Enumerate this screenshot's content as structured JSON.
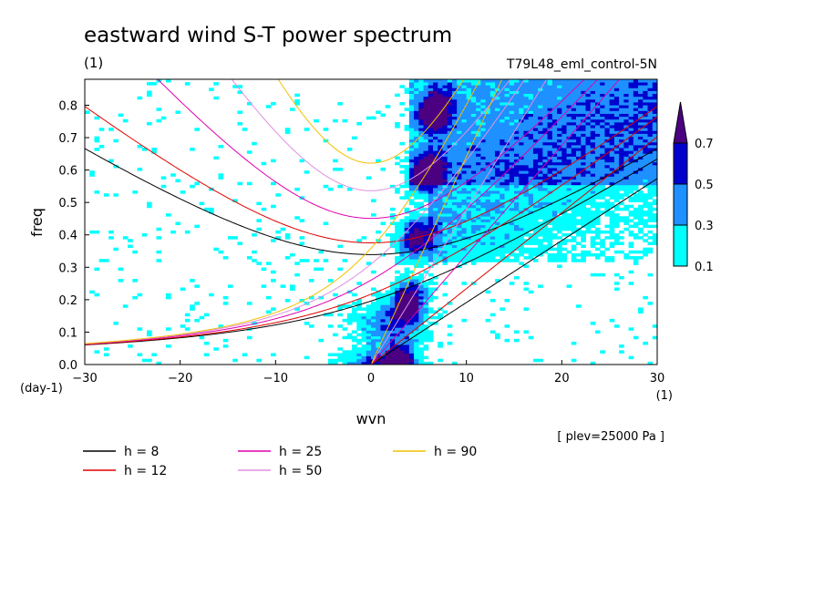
{
  "chart_data": {
    "type": "contour",
    "title": "eastward wind S-T power spectrum",
    "subtitle_left": "(1)",
    "subtitle_right": "T79L48_eml_control-5N",
    "xlabel": "wvn",
    "ylabel": "freq",
    "x_unit": "(1)",
    "y_unit": "(day-1)",
    "xlim": [
      -30,
      30
    ],
    "ylim": [
      0,
      0.88
    ],
    "xticks": [
      -30,
      -20,
      -10,
      0,
      10,
      20,
      30
    ],
    "yticks": [
      0.0,
      0.1,
      0.2,
      0.3,
      0.4,
      0.5,
      0.6,
      0.7,
      0.8
    ],
    "annotation": "[ plev=25000 Pa ]",
    "colorbar": {
      "levels": [
        0.1,
        0.3,
        0.5,
        0.7
      ],
      "colors": [
        "#00ffff",
        "#1e90ff",
        "#0000cd",
        "#4b0082"
      ]
    },
    "dispersion_curves": [
      {
        "label": "h =  8",
        "h": 8,
        "color": "#000000"
      },
      {
        "label": "h = 12",
        "h": 12,
        "color": "#e00000"
      },
      {
        "label": "h = 25",
        "h": 25,
        "color": "#e000b0"
      },
      {
        "label": "h = 50",
        "h": 50,
        "color": "#e090e0"
      },
      {
        "label": "h = 90",
        "h": 90,
        "color": "#f0c000"
      }
    ]
  }
}
